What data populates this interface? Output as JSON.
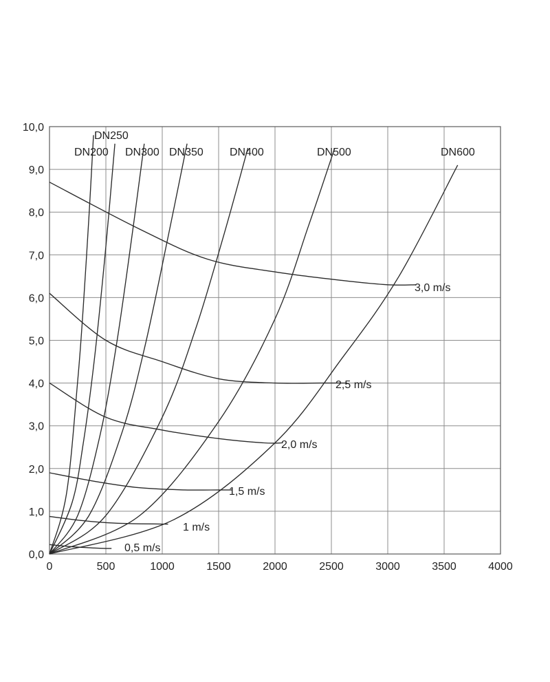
{
  "chart_data": {
    "type": "line",
    "title": "",
    "xlabel": "",
    "ylabel": "",
    "xlim": [
      0,
      4000
    ],
    "ylim": [
      0,
      10
    ],
    "grid": true,
    "x_ticks": [
      {
        "value": 0,
        "label": "0"
      },
      {
        "value": 500,
        "label": "500"
      },
      {
        "value": 1000,
        "label": "1000"
      },
      {
        "value": 1500,
        "label": "1500"
      },
      {
        "value": 2000,
        "label": "2000"
      },
      {
        "value": 2500,
        "label": "2500"
      },
      {
        "value": 3000,
        "label": "3000"
      },
      {
        "value": 3500,
        "label": "3500"
      },
      {
        "value": 4000,
        "label": "4000"
      }
    ],
    "y_ticks": [
      {
        "value": 0,
        "label": "0,0"
      },
      {
        "value": 1,
        "label": "1,0"
      },
      {
        "value": 2,
        "label": "2,0"
      },
      {
        "value": 3,
        "label": "3,0"
      },
      {
        "value": 4,
        "label": "4,0"
      },
      {
        "value": 5,
        "label": "5,0"
      },
      {
        "value": 6,
        "label": "6,0"
      },
      {
        "value": 7,
        "label": "7,0"
      },
      {
        "value": 8,
        "label": "8,0"
      },
      {
        "value": 9,
        "label": "9,0"
      },
      {
        "value": 10,
        "label": "10,0"
      }
    ],
    "pipe_series": [
      {
        "name": "DN200",
        "x": [
          0,
          150,
          250,
          300,
          350,
          390
        ],
        "y": [
          0,
          1.4,
          4.05,
          5.8,
          7.9,
          9.8
        ]
      },
      {
        "name": "DN250",
        "x": [
          0,
          200,
          300,
          400,
          500,
          580
        ],
        "y": [
          0,
          1.2,
          2.6,
          4.6,
          7.2,
          9.6
        ]
      },
      {
        "name": "DN300",
        "x": [
          0,
          250,
          450,
          600,
          750,
          840
        ],
        "y": [
          0,
          0.9,
          2.8,
          5.0,
          7.8,
          9.6
        ]
      },
      {
        "name": "DN350",
        "x": [
          0,
          350,
          650,
          850,
          1050,
          1220
        ],
        "y": [
          0,
          0.9,
          2.9,
          4.9,
          7.4,
          9.6
        ]
      },
      {
        "name": "DN400",
        "x": [
          0,
          500,
          1000,
          1300,
          1550,
          1760
        ],
        "y": [
          0,
          0.9,
          3.2,
          5.3,
          7.5,
          9.5
        ]
      },
      {
        "name": "DN500",
        "x": [
          0,
          800,
          1500,
          2000,
          2300,
          2530
        ],
        "y": [
          0,
          0.9,
          3.1,
          5.5,
          7.7,
          9.5
        ]
      },
      {
        "name": "DN600",
        "x": [
          0,
          1100,
          2000,
          2600,
          3100,
          3620
        ],
        "y": [
          0,
          0.8,
          2.6,
          4.6,
          6.5,
          9.1
        ]
      }
    ],
    "velocity_series": [
      {
        "name": "3,0 m/s",
        "x": [
          0,
          800,
          1400,
          2000,
          2600,
          3000,
          3250
        ],
        "y": [
          8.7,
          7.6,
          6.9,
          6.6,
          6.4,
          6.3,
          6.3
        ]
      },
      {
        "name": "2,5 m/s",
        "x": [
          0,
          500,
          1000,
          1500,
          2000,
          2400,
          2640
        ],
        "y": [
          6.1,
          5.0,
          4.5,
          4.1,
          4.0,
          4.0,
          4.0
        ]
      },
      {
        "name": "2,0 m/s",
        "x": [
          0,
          500,
          1000,
          1500,
          1900,
          2070
        ],
        "y": [
          4.0,
          3.2,
          2.9,
          2.7,
          2.6,
          2.6
        ]
      },
      {
        "name": "1,5 m/s",
        "x": [
          0,
          400,
          800,
          1200,
          1500,
          1620
        ],
        "y": [
          1.9,
          1.7,
          1.55,
          1.5,
          1.5,
          1.5
        ]
      },
      {
        "name": "1 m/s",
        "x": [
          0,
          300,
          600,
          1000,
          1050
        ],
        "y": [
          0.88,
          0.78,
          0.72,
          0.7,
          0.7
        ]
      },
      {
        "name": "0,5 m/s",
        "x": [
          0,
          200,
          400,
          500,
          550
        ],
        "y": [
          0.22,
          0.17,
          0.14,
          0.13,
          0.13
        ]
      }
    ],
    "labels": {
      "DN200": "DN200",
      "DN250": "DN250",
      "DN300": "DN300",
      "DN350": "DN350",
      "DN400": "DN400",
      "DN500": "DN500",
      "DN600": "DN600",
      "v30": "3,0 m/s",
      "v25": "2,5 m/s",
      "v20": "2,0 m/s",
      "v15": "1,5 m/s",
      "v10": "1 m/s",
      "v05": "0,5 m/s"
    }
  }
}
